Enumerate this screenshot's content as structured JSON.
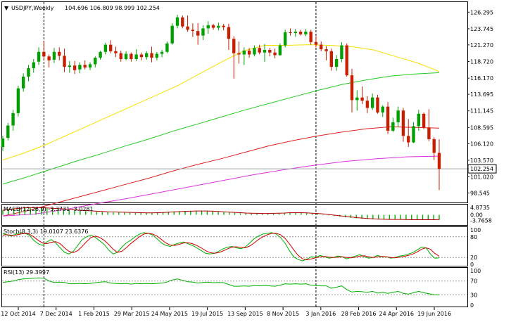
{
  "header": {
    "symbol": "USDJPY,Weekly",
    "ohlc": "104.696 106.809 98.999 102.254"
  },
  "colors": {
    "bull": "#00a000",
    "bear": "#c81e00",
    "ma_yellow": "#f5e000",
    "ma_green": "#22cc22",
    "ma_red": "#dd2222",
    "ma_magenta": "#dd33dd",
    "macd_hist": "#00b000",
    "macd_signal": "#b00000",
    "stoch_main": "#00b000",
    "stoch_signal": "#d00000",
    "rsi": "#00b000",
    "grid": "#000000",
    "price_box": "#ffffff"
  },
  "chart_data": [
    {
      "type": "candlestick",
      "panel": "price",
      "ylim": [
        97.3,
        127.3
      ],
      "y_ticks": [
        "126.295",
        "123.745",
        "121.270",
        "118.720",
        "116.170",
        "113.695",
        "111.145",
        "108.595",
        "106.120",
        "103.570",
        "101.020",
        "98.545"
      ],
      "current_price": "102.254",
      "current_value": 102.254,
      "x_ticks": [
        "12 Oct 2014",
        "7 Dec 2014",
        "1 Feb 2015",
        "29 Mar 2015",
        "24 May 2015",
        "19 Jul 2015",
        "13 Sep 2015",
        "8 Nov 2015",
        "3 Jan 2016",
        "28 Feb 2016",
        "24 Apr 2016",
        "19 Jun 2016"
      ],
      "period_separators": [
        8,
        61
      ],
      "ohlc": [
        [
          105.6,
          107.3,
          105.0,
          106.9
        ],
        [
          107.0,
          109.3,
          106.6,
          108.9
        ],
        [
          108.9,
          111.3,
          108.1,
          110.8
        ],
        [
          110.8,
          115.0,
          110.3,
          114.6
        ],
        [
          114.6,
          116.9,
          114.1,
          116.4
        ],
        [
          116.4,
          118.2,
          115.7,
          117.7
        ],
        [
          117.7,
          119.1,
          117.0,
          118.6
        ],
        [
          118.7,
          120.9,
          118.2,
          120.2
        ],
        [
          120.2,
          121.9,
          118.9,
          119.5
        ],
        [
          119.5,
          119.8,
          117.8,
          118.9
        ],
        [
          119.0,
          120.8,
          118.5,
          120.2
        ],
        [
          120.2,
          120.9,
          118.9,
          119.6
        ],
        [
          119.6,
          120.7,
          117.1,
          117.9
        ],
        [
          117.9,
          118.8,
          117.0,
          118.1
        ],
        [
          118.1,
          118.8,
          116.8,
          117.4
        ],
        [
          117.5,
          118.6,
          116.9,
          118.2
        ],
        [
          118.2,
          118.9,
          117.5,
          117.8
        ],
        [
          117.8,
          118.6,
          117.4,
          118.3
        ],
        [
          118.3,
          119.5,
          117.8,
          119.3
        ],
        [
          119.3,
          120.4,
          119.0,
          120.2
        ],
        [
          120.2,
          121.6,
          119.8,
          121.3
        ],
        [
          121.3,
          122.0,
          120.0,
          120.3
        ],
        [
          120.3,
          121.0,
          119.4,
          120.0
        ],
        [
          120.0,
          120.4,
          118.7,
          119.1
        ],
        [
          119.1,
          120.3,
          118.9,
          119.9
        ],
        [
          119.9,
          120.1,
          118.7,
          119.1
        ],
        [
          119.1,
          120.6,
          118.8,
          119.8
        ],
        [
          119.8,
          120.1,
          118.9,
          119.4
        ],
        [
          119.4,
          120.3,
          119.0,
          120.0
        ],
        [
          120.0,
          121.0,
          118.6,
          119.3
        ],
        [
          119.3,
          120.2,
          118.9,
          119.9
        ],
        [
          119.9,
          120.5,
          119.4,
          120.2
        ],
        [
          120.2,
          121.8,
          120.0,
          121.5
        ],
        [
          121.5,
          124.6,
          121.3,
          124.2
        ],
        [
          124.2,
          125.9,
          123.8,
          125.5
        ],
        [
          125.5,
          125.8,
          123.8,
          124.1
        ],
        [
          124.1,
          125.8,
          123.3,
          123.6
        ],
        [
          123.6,
          124.6,
          122.5,
          123.4
        ],
        [
          123.4,
          124.6,
          121.3,
          122.7
        ],
        [
          122.7,
          124.3,
          122.0,
          123.8
        ],
        [
          123.8,
          124.9,
          123.0,
          124.3
        ],
        [
          124.3,
          124.5,
          123.6,
          123.9
        ],
        [
          123.9,
          124.7,
          123.5,
          124.2
        ],
        [
          124.2,
          124.5,
          123.5,
          124.0
        ],
        [
          124.0,
          124.5,
          120.5,
          122.2
        ],
        [
          122.2,
          122.6,
          116.1,
          120.0
        ],
        [
          120.0,
          121.8,
          118.4,
          119.8
        ],
        [
          119.8,
          120.9,
          118.2,
          120.4
        ],
        [
          120.4,
          120.8,
          119.3,
          119.8
        ],
        [
          119.8,
          121.2,
          119.5,
          120.8
        ],
        [
          120.8,
          121.3,
          119.8,
          120.1
        ],
        [
          120.1,
          121.4,
          118.7,
          120.5
        ],
        [
          120.5,
          120.8,
          119.5,
          120.1
        ],
        [
          120.1,
          120.7,
          119.2,
          119.7
        ],
        [
          119.7,
          121.5,
          119.6,
          121.2
        ],
        [
          121.2,
          123.6,
          120.9,
          123.2
        ],
        [
          123.2,
          123.8,
          122.7,
          123.1
        ],
        [
          123.1,
          123.7,
          122.5,
          123.3
        ],
        [
          123.3,
          123.6,
          122.7,
          122.9
        ],
        [
          122.9,
          123.7,
          122.6,
          123.3
        ],
        [
          123.3,
          123.6,
          121.3,
          121.7
        ],
        [
          121.7,
          122.6,
          120.9,
          121.3
        ],
        [
          121.3,
          121.8,
          120.3,
          120.6
        ],
        [
          120.6,
          121.1,
          118.9,
          120.3
        ],
        [
          120.3,
          120.7,
          117.3,
          117.9
        ],
        [
          117.9,
          119.7,
          117.3,
          119.1
        ],
        [
          119.1,
          121.7,
          118.6,
          121.2
        ],
        [
          121.2,
          121.5,
          116.4,
          116.6
        ],
        [
          116.6,
          117.6,
          110.9,
          112.8
        ],
        [
          112.8,
          114.3,
          111.2,
          113.2
        ],
        [
          113.2,
          114.9,
          112.2,
          112.7
        ],
        [
          112.7,
          113.4,
          110.8,
          111.6
        ],
        [
          111.6,
          113.8,
          111.3,
          113.2
        ],
        [
          113.2,
          113.6,
          110.7,
          110.9
        ],
        [
          110.9,
          112.0,
          110.2,
          111.8
        ],
        [
          111.8,
          112.5,
          107.6,
          108.1
        ],
        [
          108.1,
          110.1,
          107.9,
          109.4
        ],
        [
          109.4,
          111.8,
          108.7,
          111.2
        ],
        [
          111.2,
          111.6,
          106.4,
          107.3
        ],
        [
          107.3,
          109.9,
          105.6,
          106.3
        ],
        [
          106.3,
          109.4,
          106.2,
          108.8
        ],
        [
          108.8,
          111.3,
          108.1,
          110.7
        ],
        [
          110.7,
          110.9,
          108.3,
          108.6
        ],
        [
          108.6,
          111.4,
          106.5,
          106.8
        ],
        [
          106.8,
          107.1,
          103.6,
          104.7
        ],
        [
          104.7,
          106.8,
          99.0,
          102.25
        ]
      ],
      "moving_averages": [
        {
          "color_key": "ma_yellow",
          "values": [
            103.6,
            104.7,
            106.0,
            107.5,
            109.0,
            110.5,
            112.0,
            113.5,
            115.0,
            116.8,
            118.6,
            120.3,
            121.2,
            121.2,
            121.3,
            121.2,
            121.0,
            120.5,
            119.5,
            118.5,
            117.2
          ]
        },
        {
          "color_key": "ma_green",
          "values": [
            99.9,
            101.0,
            102.2,
            103.4,
            104.5,
            105.7,
            106.8,
            108.0,
            109.1,
            110.2,
            111.3,
            112.3,
            113.3,
            114.3,
            115.2,
            115.9,
            116.5,
            116.8,
            117.0
          ]
        },
        {
          "color_key": "ma_red",
          "values": [
            95.0,
            95.8,
            96.8,
            97.8,
            98.8,
            99.8,
            100.8,
            101.9,
            102.9,
            103.8,
            104.8,
            105.8,
            106.6,
            107.3,
            107.9,
            108.4,
            108.7,
            108.6,
            108.5
          ]
        },
        {
          "color_key": "ma_magenta",
          "values": [
            95.0,
            95.3,
            96.0,
            96.9,
            97.7,
            98.6,
            99.5,
            100.4,
            101.3,
            102.1,
            102.8,
            103.4,
            103.8,
            104.1,
            104.2
          ]
        }
      ]
    },
    {
      "type": "bar",
      "panel": "macd",
      "title": "MACD(12,26,9) -3.3731 -3.0281",
      "ylim": [
        -6.2,
        5.8
      ],
      "y_ticks": [
        "4.8735",
        "0.00",
        "-3.7658"
      ],
      "y_tick_values": [
        4.8735,
        0.0,
        -3.7658
      ],
      "histogram": [
        3.2,
        3.8,
        4.3,
        4.8,
        4.8,
        4.7,
        4.5,
        4.4,
        4.2,
        4.0,
        3.8,
        3.5,
        3.2,
        2.9,
        2.6,
        2.4,
        2.2,
        2.0,
        1.8,
        1.7,
        1.6,
        1.5,
        1.4,
        1.3,
        1.2,
        1.2,
        1.2,
        1.3,
        1.5,
        1.7,
        2.0,
        2.2,
        2.4,
        2.5,
        2.6,
        2.6,
        2.5,
        2.4,
        2.3,
        2.0,
        1.7,
        1.5,
        1.3,
        1.1,
        1.0,
        0.9,
        0.9,
        0.8,
        0.9,
        1.0,
        1.2,
        1.4,
        1.5,
        1.5,
        1.4,
        1.2,
        0.9,
        0.6,
        0.2,
        -0.3,
        -0.8,
        -1.2,
        -1.6,
        -2.0,
        -2.3,
        -2.6,
        -2.8,
        -3.0,
        -3.1,
        -3.1,
        -3.0,
        -3.0,
        -3.1,
        -3.2,
        -3.4,
        -3.3,
        -3.2,
        -3.2,
        -3.3,
        -3.37
      ],
      "signal": [
        3.0,
        3.4,
        3.9,
        4.3,
        4.6,
        4.7,
        4.7,
        4.6,
        4.5,
        4.3,
        4.1,
        3.9,
        3.6,
        3.3,
        3.0,
        2.8,
        2.6,
        2.4,
        2.2,
        2.0,
        1.9,
        1.8,
        1.7,
        1.6,
        1.5,
        1.4,
        1.3,
        1.3,
        1.4,
        1.5,
        1.7,
        1.9,
        2.1,
        2.3,
        2.4,
        2.5,
        2.5,
        2.5,
        2.4,
        2.2,
        2.0,
        1.8,
        1.6,
        1.4,
        1.2,
        1.1,
        1.0,
        0.9,
        0.9,
        1.0,
        1.1,
        1.2,
        1.4,
        1.4,
        1.4,
        1.3,
        1.1,
        0.9,
        0.6,
        0.2,
        -0.2,
        -0.6,
        -1.0,
        -1.4,
        -1.8,
        -2.1,
        -2.4,
        -2.6,
        -2.8,
        -2.9,
        -3.0,
        -3.0,
        -3.0,
        -3.1,
        -3.2,
        -3.2,
        -3.2,
        -3.2,
        -3.2,
        -3.03
      ]
    },
    {
      "type": "line",
      "panel": "stochastic",
      "title": "Stoch(8,3,3) 19.0107 23.6376",
      "ylim": [
        0,
        100
      ],
      "y_ticks": [
        "100",
        "80",
        "20",
        "0"
      ],
      "y_tick_values": [
        100,
        80,
        20,
        0
      ],
      "levels": [
        80,
        20
      ],
      "series": [
        {
          "color_key": "stoch_main",
          "values": [
            90,
            85,
            82,
            88,
            92,
            90,
            85,
            70,
            60,
            55,
            65,
            72,
            62,
            48,
            35,
            30,
            38,
            55,
            72,
            80,
            85,
            78,
            68,
            58,
            42,
            30,
            35,
            50,
            62,
            70,
            80,
            88,
            92,
            90,
            85,
            74,
            62,
            55,
            52,
            58,
            62,
            65,
            60,
            55,
            48,
            40,
            32,
            30,
            32,
            38,
            45,
            50,
            52,
            48,
            45,
            50,
            62,
            74,
            82,
            88,
            90,
            92,
            88,
            78,
            62,
            40,
            22,
            14,
            10,
            15,
            22,
            20,
            26,
            22,
            18,
            20,
            24,
            22,
            16,
            20,
            24,
            28,
            22,
            18,
            20,
            26,
            22,
            22,
            18,
            20,
            24,
            26,
            30,
            34,
            42,
            50,
            48,
            30,
            18,
            19
          ]
        },
        {
          "color_key": "stoch_signal",
          "values": [
            85,
            86,
            84,
            85,
            88,
            90,
            88,
            80,
            70,
            62,
            60,
            64,
            66,
            60,
            48,
            38,
            34,
            40,
            52,
            66,
            78,
            82,
            78,
            70,
            58,
            44,
            35,
            38,
            48,
            60,
            70,
            80,
            88,
            90,
            88,
            82,
            72,
            62,
            56,
            55,
            58,
            62,
            63,
            60,
            55,
            48,
            40,
            34,
            32,
            34,
            39,
            45,
            50,
            51,
            49,
            48,
            53,
            62,
            72,
            80,
            86,
            90,
            90,
            86,
            76,
            60,
            42,
            26,
            16,
            13,
            16,
            19,
            22,
            23,
            21,
            20,
            21,
            22,
            20,
            19,
            21,
            24,
            25,
            22,
            20,
            22,
            23,
            22,
            20,
            19,
            21,
            23,
            26,
            30,
            36,
            44,
            48,
            44,
            32,
            23.6
          ]
        }
      ]
    },
    {
      "type": "line",
      "panel": "rsi",
      "title": "RSI(13) 29.3997",
      "ylim": [
        0,
        100
      ],
      "y_ticks": [
        "100",
        "70",
        "30",
        "0"
      ],
      "y_tick_values": [
        100,
        70,
        30,
        0
      ],
      "levels": [
        70,
        30
      ],
      "series": [
        {
          "color_key": "rsi",
          "values": [
            66,
            68,
            70,
            74,
            76,
            77,
            78,
            79,
            78,
            70,
            66,
            67,
            66,
            62,
            62,
            63,
            62,
            63,
            65,
            67,
            68,
            64,
            63,
            62,
            63,
            61,
            63,
            62,
            63,
            62,
            63,
            64,
            67,
            73,
            76,
            72,
            68,
            67,
            64,
            66,
            67,
            65,
            66,
            65,
            60,
            55,
            55,
            56,
            55,
            57,
            56,
            57,
            56,
            55,
            58,
            62,
            61,
            62,
            61,
            62,
            58,
            57,
            56,
            56,
            49,
            52,
            56,
            45,
            38,
            40,
            39,
            37,
            40,
            35,
            37,
            34,
            37,
            40,
            34,
            32,
            36,
            40,
            36,
            33,
            30,
            29.4
          ]
        }
      ]
    }
  ]
}
